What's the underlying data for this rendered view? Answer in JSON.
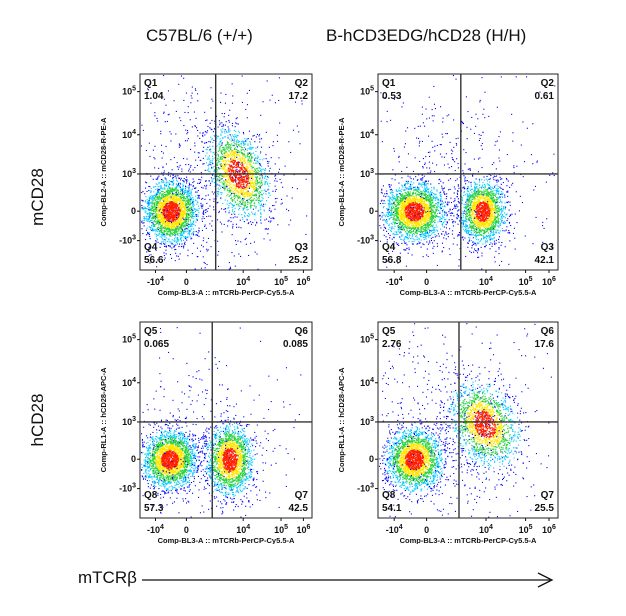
{
  "columns": [
    "C57BL/6 (+/+)",
    "B-hCD3EDG/hCD28 (H/H)"
  ],
  "rows": [
    "mCD28",
    "hCD28"
  ],
  "bottom_axis_label": "mTCRβ",
  "colors": {
    "low": "#0000ff",
    "mid": "#00c8ff",
    "green": "#28d23c",
    "yellow": "#ffe600",
    "high": "#ff1e00"
  },
  "chart_data": [
    {
      "type": "scatter",
      "panel": "C57BL/6 mCD28",
      "xlabel": "Comp-BL3-A :: mTCRb-PerCP-Cy5.5-A",
      "ylabel": "Comp-BL2-A :: mCD28-R-PE-A",
      "x_ticks": [
        "-10^4",
        "0",
        "10^4",
        "10^5",
        "10^6"
      ],
      "y_ticks": [
        "-10^3",
        "0",
        "10^3",
        "10^4",
        "10^5"
      ],
      "quadrants": [
        {
          "name": "Q1",
          "value": "1.04"
        },
        {
          "name": "Q2",
          "value": "17.2"
        },
        {
          "name": "Q3",
          "value": "25.2"
        },
        {
          "name": "Q4",
          "value": "56.6"
        }
      ]
    },
    {
      "type": "scatter",
      "panel": "B-hCD3EDG/hCD28 mCD28",
      "xlabel": "Comp-BL3-A :: mTCRb-PerCP-Cy5.5-A",
      "ylabel": "Comp-BL2-A :: mCD28-R-PE-A",
      "x_ticks": [
        "-10^4",
        "0",
        "10^4",
        "10^5",
        "10^6"
      ],
      "y_ticks": [
        "-10^3",
        "0",
        "10^3",
        "10^4",
        "10^5"
      ],
      "quadrants": [
        {
          "name": "Q1",
          "value": "0.53"
        },
        {
          "name": "Q2",
          "value": "0.61"
        },
        {
          "name": "Q3",
          "value": "42.1"
        },
        {
          "name": "Q4",
          "value": "56.8"
        }
      ]
    },
    {
      "type": "scatter",
      "panel": "C57BL/6 hCD28",
      "xlabel": "Comp-BL3-A :: mTCRb-PerCP-Cy5.5-A",
      "ylabel": "Comp-RL1-A :: hCD28-APC-A",
      "x_ticks": [
        "-10^4",
        "0",
        "10^4",
        "10^5",
        "10^6"
      ],
      "y_ticks": [
        "-10^3",
        "0",
        "10^3",
        "10^4",
        "10^5"
      ],
      "quadrants": [
        {
          "name": "Q5",
          "value": "0.065"
        },
        {
          "name": "Q6",
          "value": "0.085"
        },
        {
          "name": "Q7",
          "value": "42.5"
        },
        {
          "name": "Q8",
          "value": "57.3"
        }
      ]
    },
    {
      "type": "scatter",
      "panel": "B-hCD3EDG/hCD28 hCD28",
      "xlabel": "Comp-BL3-A :: mTCRb-PerCP-Cy5.5-A",
      "ylabel": "Comp-RL1-A :: hCD28-APC-A",
      "x_ticks": [
        "-10^4",
        "0",
        "10^4",
        "10^5",
        "10^6"
      ],
      "y_ticks": [
        "-10^3",
        "0",
        "10^3",
        "10^4",
        "10^5"
      ],
      "quadrants": [
        {
          "name": "Q5",
          "value": "2.76"
        },
        {
          "name": "Q6",
          "value": "17.6"
        },
        {
          "name": "Q7",
          "value": "25.5"
        },
        {
          "name": "Q8",
          "value": "54.1"
        }
      ]
    }
  ]
}
